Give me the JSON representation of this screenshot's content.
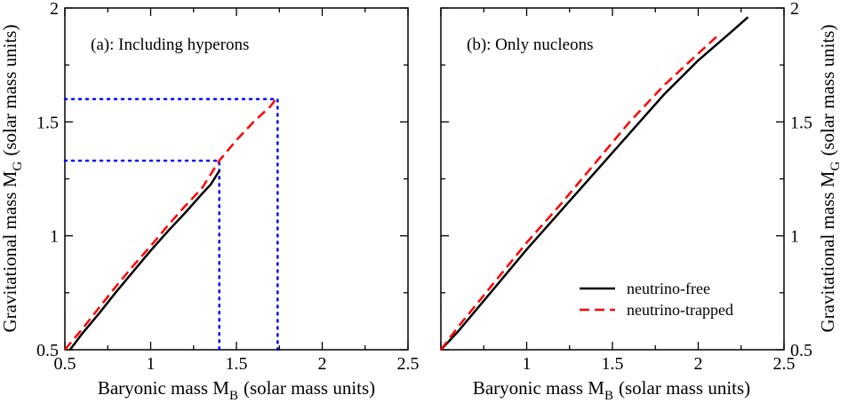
{
  "chart_data": [
    {
      "type": "line",
      "annotation": "(a): Including hyperons",
      "xlabel": "Baryonic mass M",
      "xlabel_sub": "B",
      "xlabel_units": "(solar mass units)",
      "ylabel": "Gravitational mass M",
      "ylabel_sub": "G",
      "ylabel_units": "(solar mass units)",
      "xlim": [
        0.5,
        2.5
      ],
      "ylim": [
        0.5,
        2.0
      ],
      "xticks": [
        0.5,
        1,
        1.5,
        2,
        2.5
      ],
      "xtick_labels": [
        "0.5",
        "1",
        "1.5",
        "2",
        "2.5"
      ],
      "yticks": [
        0.5,
        1,
        1.5,
        2
      ],
      "ytick_labels": [
        "0.5",
        "1",
        "1.5",
        "2"
      ],
      "grid": false,
      "series": [
        {
          "name": "neutrino-free",
          "color": "#000000",
          "dash": "solid",
          "x": [
            0.53,
            0.6,
            0.7,
            0.8,
            0.9,
            1.0,
            1.1,
            1.2,
            1.3,
            1.35,
            1.4
          ],
          "y": [
            0.5,
            0.57,
            0.66,
            0.755,
            0.845,
            0.935,
            1.02,
            1.1,
            1.185,
            1.225,
            1.285
          ]
        },
        {
          "name": "neutrino-trapped",
          "color": "#ff0000",
          "dash": "dashed",
          "x": [
            0.5,
            0.6,
            0.7,
            0.8,
            0.9,
            1.0,
            1.1,
            1.2,
            1.3,
            1.4,
            1.5,
            1.6,
            1.7,
            1.73
          ],
          "y": [
            0.5,
            0.59,
            0.685,
            0.78,
            0.87,
            0.955,
            1.045,
            1.13,
            1.21,
            1.33,
            1.42,
            1.5,
            1.57,
            1.6
          ]
        }
      ],
      "reference_lines": [
        {
          "color": "#0000ff",
          "style": "dotted",
          "x": [
            0.5,
            1.4,
            1.4
          ],
          "y": [
            1.33,
            1.33,
            0.5
          ]
        },
        {
          "color": "#0000ff",
          "style": "dotted",
          "x": [
            0.5,
            1.74,
            1.74
          ],
          "y": [
            1.6,
            1.6,
            0.5
          ]
        }
      ]
    },
    {
      "type": "line",
      "annotation": "(b): Only nucleons",
      "xlabel": "Baryonic mass M",
      "xlabel_sub": "B",
      "xlabel_units": "(solar mass units)",
      "ylabel": "Gravitational mass M",
      "ylabel_sub": "G",
      "ylabel_units": "(solar mass units)",
      "xlim": [
        0.5,
        2.5
      ],
      "ylim": [
        0.5,
        2.0
      ],
      "xticks": [
        0.5,
        1,
        1.5,
        2,
        2.5
      ],
      "xtick_labels": [
        "",
        "1",
        "1.5",
        "2",
        "2.5"
      ],
      "yticks": [
        0.5,
        1,
        1.5,
        2
      ],
      "ytick_labels": [
        "0.5",
        "1",
        "1.5",
        "2"
      ],
      "grid": false,
      "legend_position": "bottom-right",
      "series": [
        {
          "name": "neutrino-free",
          "color": "#000000",
          "dash": "solid",
          "x": [
            0.5,
            0.6,
            0.8,
            1.0,
            1.2,
            1.4,
            1.6,
            1.8,
            2.0,
            2.2,
            2.29
          ],
          "y": [
            0.5,
            0.58,
            0.76,
            0.94,
            1.11,
            1.28,
            1.45,
            1.62,
            1.77,
            1.9,
            1.96
          ]
        },
        {
          "name": "neutrino-trapped",
          "color": "#ff0000",
          "dash": "dashed",
          "x": [
            0.5,
            0.6,
            0.8,
            1.0,
            1.2,
            1.4,
            1.6,
            1.8,
            2.0,
            2.13
          ],
          "y": [
            0.5,
            0.6,
            0.785,
            0.97,
            1.14,
            1.32,
            1.5,
            1.66,
            1.8,
            1.89
          ]
        }
      ]
    }
  ]
}
